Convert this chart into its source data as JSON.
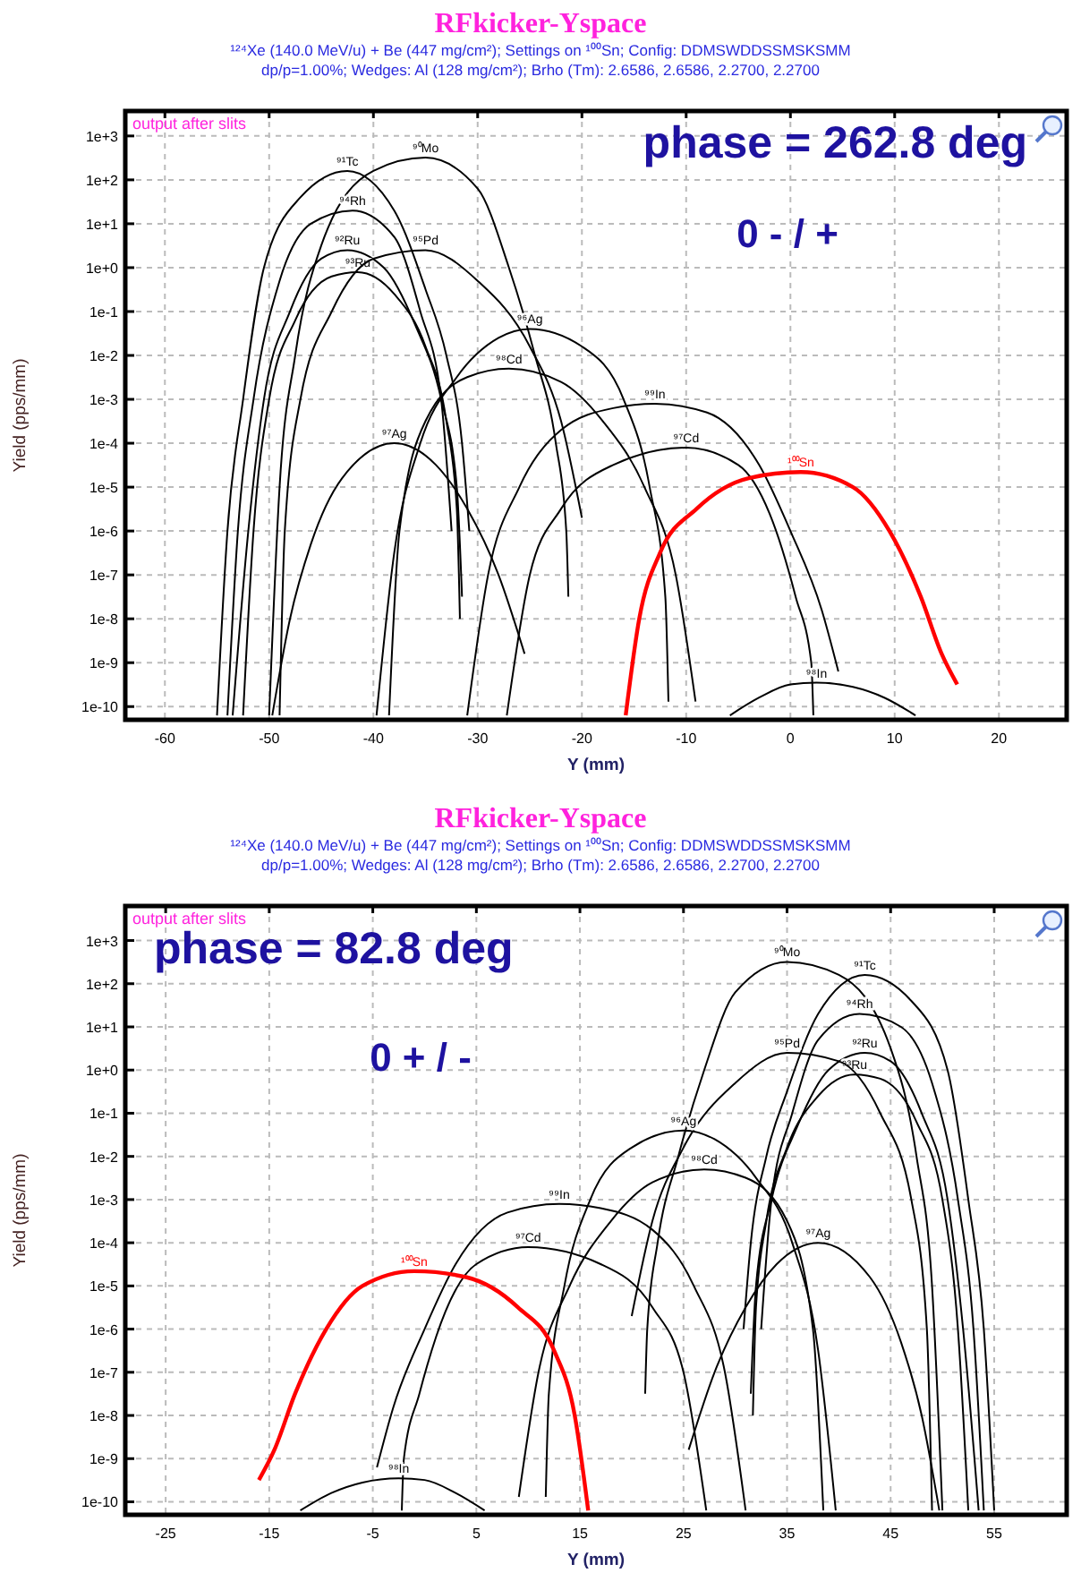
{
  "chart_data": [
    {
      "type": "line",
      "title": "RFkicker-Yspace",
      "subtitle": "¹²⁴Xe (140.0 MeV/u) + Be (447 mg/cm²); Settings on ¹⁰⁰Sn; Config: DDMSWDDSSMSKSMM\ndp/p=1.00%; Wedges: Al (128 mg/cm²); Brho (Tm): 2.6586, 2.6586, 2.2700, 2.2700",
      "xlabel": "Y (mm)",
      "ylabel": "Yield (pps/mm)",
      "annotations": [
        "output after slits",
        "phase = 262.8 deg",
        "0 - / +"
      ],
      "xlim": [
        -63.8,
        26.5
      ],
      "xticks": [
        -60,
        -50,
        -40,
        -30,
        -20,
        -10,
        0,
        10,
        20
      ],
      "ylim": [
        5e-11,
        3700
      ],
      "yticks": [
        {
          "value": 1e-10,
          "label": "1e-10"
        },
        {
          "value": 1e-09,
          "label": "1e-9"
        },
        {
          "value": 1e-08,
          "label": "1e-8"
        },
        {
          "value": 1e-07,
          "label": "1e-7"
        },
        {
          "value": 1e-06,
          "label": "1e-6"
        },
        {
          "value": 1e-05,
          "label": "1e-5"
        },
        {
          "value": 0.0001,
          "label": "1e-4"
        },
        {
          "value": 0.001,
          "label": "1e-3"
        },
        {
          "value": 0.01,
          "label": "1e-2"
        },
        {
          "value": 0.1,
          "label": "1e-1"
        },
        {
          "value": 1,
          "label": "1e+0"
        },
        {
          "value": 10,
          "label": "1e+1"
        },
        {
          "value": 100,
          "label": "1e+2"
        },
        {
          "value": 1000,
          "label": "1e+3"
        }
      ],
      "log": "y",
      "grid": true,
      "legend": false,
      "line_style": "solid",
      "marker": "none",
      "series": [
        {
          "name": "⁹¹Tc",
          "color": "#000000",
          "x": [
            -55,
            -54,
            -52.5,
            -50.5,
            -47,
            -42.5,
            -38,
            -35,
            -33,
            -31.5,
            -30.8
          ],
          "values": [
            6.3e-11,
            1e-06,
            0.001,
            1,
            40,
            160,
            20,
            0.32,
            0.01,
            0.0001,
            1e-06
          ]
        },
        {
          "name": "⁹⁰Mo",
          "color": "#000000",
          "x": [
            -50,
            -49,
            -47.5,
            -45,
            -40,
            -35,
            -30,
            -27,
            -24.5,
            -22.5,
            -21.5,
            -21.3
          ],
          "values": [
            6.3e-11,
            1e-05,
            0.01,
            3.2,
            160,
            320,
            63,
            1,
            0.01,
            0.0001,
            1e-06,
            3.2e-08
          ]
        },
        {
          "name": "⁹⁴Rh",
          "color": "#000000",
          "x": [
            -54,
            -53,
            -51.5,
            -49,
            -46,
            -42,
            -38,
            -35.5,
            -33.5,
            -32.5
          ],
          "values": [
            6.3e-11,
            1e-06,
            0.001,
            0.5,
            10,
            20,
            5,
            0.1,
            0.001,
            1e-06
          ]
        },
        {
          "name": "⁹²Ru",
          "color": "#000000",
          "x": [
            -53.5,
            -52,
            -50.5,
            -48,
            -45,
            -42.5,
            -39,
            -36,
            -33.5,
            -32,
            -31.5
          ],
          "values": [
            6.3e-11,
            1e-06,
            0.001,
            0.1,
            1.6,
            2.5,
            1,
            0.05,
            0.001,
            1e-05,
            3.2e-08
          ]
        },
        {
          "name": "⁹³Ru",
          "color": "#000000",
          "x": [
            -52.5,
            -51.5,
            -50,
            -47.5,
            -44,
            -41.5,
            -38,
            -35,
            -33,
            -32,
            -31.7
          ],
          "values": [
            6.3e-11,
            1e-06,
            0.001,
            0.063,
            0.63,
            0.79,
            0.25,
            0.016,
            0.00032,
            3.2e-06,
            1e-08
          ]
        },
        {
          "name": "⁹⁵Pd",
          "color": "#000000",
          "x": [
            -49,
            -48.5,
            -47,
            -44,
            -40,
            -35,
            -30,
            -25,
            -22,
            -20
          ],
          "values": [
            6.3e-11,
            1e-06,
            0.001,
            0.1,
            1.6,
            2.5,
            0.5,
            0.016,
            0.00032,
            2e-06
          ]
        },
        {
          "name": "⁹⁶Ag",
          "color": "#000000",
          "x": [
            -39.7,
            -38,
            -35.5,
            -32,
            -28,
            -25,
            -20,
            -16,
            -13.5,
            -12,
            -11.7
          ],
          "values": [
            6.3e-11,
            3.2e-07,
            0.0001,
            0.0032,
            0.025,
            0.04,
            0.016,
            0.001,
            1e-05,
            3.2e-08,
            1.3e-10
          ]
        },
        {
          "name": "⁹⁸Cd",
          "color": "#000000",
          "x": [
            -38.5,
            -37.5,
            -35,
            -31,
            -27,
            -22,
            -18,
            -14,
            -11,
            -9.1
          ],
          "values": [
            6.3e-11,
            1e-06,
            0.00032,
            0.0032,
            0.005,
            0.0025,
            0.00032,
            1e-05,
            1e-07,
            1.3e-10
          ]
        },
        {
          "name": "⁹⁹In",
          "color": "#000000",
          "x": [
            -31,
            -29,
            -26,
            -22,
            -17,
            -13,
            -8,
            -3,
            0,
            3,
            4.6
          ],
          "values": [
            6.3e-11,
            1e-07,
            1e-05,
            0.0002,
            0.00063,
            0.00079,
            0.0005,
            3.2e-05,
            1e-06,
            1.6e-08,
            6.3e-10
          ]
        },
        {
          "name": "⁹⁷Ag",
          "color": "#000000",
          "x": [
            -49.7,
            -48,
            -46,
            -43,
            -38,
            -34,
            -31,
            -28,
            -25.5
          ],
          "values": [
            6.3e-11,
            1e-08,
            5e-07,
            1.6e-05,
            0.0001,
            3.2e-05,
            3.2e-06,
            1e-07,
            1.6e-09
          ]
        },
        {
          "name": "⁹⁷Cd",
          "color": "#000000",
          "x": [
            -27.2,
            -25,
            -22,
            -17,
            -10,
            -5,
            -2,
            0.5,
            2,
            2.2
          ],
          "values": [
            6.3e-11,
            1e-07,
            3.2e-06,
            3.2e-05,
            7.9e-05,
            3.2e-05,
            2.5e-06,
            3.2e-08,
            1e-09,
            6.3e-11
          ]
        },
        {
          "name": "¹⁰⁰Sn",
          "color": "#ff0000",
          "x": [
            -15.8,
            -14.5,
            -12.5,
            -9,
            -4,
            1,
            6,
            9.5,
            12.5,
            14.5,
            16
          ],
          "values": [
            6.3e-11,
            1e-08,
            3.2e-07,
            3.2e-06,
            1.6e-05,
            2.2e-05,
            1e-05,
            1e-06,
            3.2e-08,
            1.6e-09,
            3.2e-10
          ]
        },
        {
          "name": "⁹⁸In",
          "color": "#000000",
          "x": [
            -5.8,
            -3,
            0,
            2.5,
            6,
            9,
            12
          ],
          "values": [
            6.3e-11,
            1.6e-10,
            3.2e-10,
            3.5e-10,
            2.8e-10,
            1.6e-10,
            6.3e-11
          ]
        }
      ]
    },
    {
      "type": "line",
      "title": "RFkicker-Yspace",
      "subtitle": "¹²⁴Xe (140.0 MeV/u) + Be (447 mg/cm²); Settings on ¹⁰⁰Sn; Config: DDMSWDDSSMSKSMM\ndp/p=1.00%; Wedges: Al (128 mg/cm²); Brho (Tm): 2.6586, 2.6586, 2.2700, 2.2700",
      "xlabel": "Y (mm)",
      "ylabel": "Yield (pps/mm)",
      "annotations": [
        "output after slits",
        "phase = 82.8 deg",
        "0 + / -"
      ],
      "xlim": [
        -28.9,
        62
      ],
      "xticks": [
        -25,
        -15,
        -5,
        5,
        15,
        25,
        35,
        45,
        55
      ],
      "ylim": [
        5e-11,
        6300
      ],
      "yticks": [
        {
          "value": 1e-10,
          "label": "1e-10"
        },
        {
          "value": 1e-09,
          "label": "1e-9"
        },
        {
          "value": 1e-08,
          "label": "1e-8"
        },
        {
          "value": 1e-07,
          "label": "1e-7"
        },
        {
          "value": 1e-06,
          "label": "1e-6"
        },
        {
          "value": 1e-05,
          "label": "1e-5"
        },
        {
          "value": 0.0001,
          "label": "1e-4"
        },
        {
          "value": 0.001,
          "label": "1e-3"
        },
        {
          "value": 0.01,
          "label": "1e-2"
        },
        {
          "value": 0.1,
          "label": "1e-1"
        },
        {
          "value": 1,
          "label": "1e+0"
        },
        {
          "value": 10,
          "label": "1e+1"
        },
        {
          "value": 100,
          "label": "1e+2"
        },
        {
          "value": 1000,
          "label": "1e+3"
        }
      ],
      "log": "y",
      "grid": true,
      "legend": false,
      "line_style": "solid",
      "marker": "none",
      "series": [
        {
          "name": "⁹¹Tc",
          "color": "#000000",
          "x": [
            30.8,
            31.5,
            33,
            35,
            38,
            42.5,
            47,
            50.5,
            52.5,
            54,
            55
          ],
          "values": [
            1e-06,
            0.0001,
            0.01,
            0.32,
            20,
            160,
            40,
            1,
            0.001,
            1e-06,
            6.3e-11
          ]
        },
        {
          "name": "⁹⁰Mo",
          "color": "#000000",
          "x": [
            21.3,
            21.5,
            22.5,
            24.5,
            27,
            30,
            35,
            40,
            45,
            47.5,
            49,
            50
          ],
          "values": [
            3.2e-08,
            1e-06,
            0.0001,
            0.01,
            1,
            63,
            320,
            160,
            3.2,
            0.01,
            1e-05,
            6.3e-11
          ]
        },
        {
          "name": "⁹⁴Rh",
          "color": "#000000",
          "x": [
            32.5,
            33.5,
            35.5,
            38,
            42,
            46,
            49,
            51.5,
            53,
            54
          ],
          "values": [
            1e-06,
            0.001,
            0.1,
            5,
            20,
            10,
            0.5,
            0.001,
            1e-06,
            6.3e-11
          ]
        },
        {
          "name": "⁹²Ru",
          "color": "#000000",
          "x": [
            31.5,
            32,
            33.5,
            36,
            39,
            42.5,
            45,
            48,
            50.5,
            52,
            53.5
          ],
          "values": [
            3.2e-08,
            1e-05,
            0.001,
            0.05,
            1,
            2.5,
            1.6,
            0.1,
            0.001,
            1e-06,
            6.3e-11
          ]
        },
        {
          "name": "⁹³Ru",
          "color": "#000000",
          "x": [
            31.7,
            32,
            33,
            35,
            38,
            41.5,
            44,
            47.5,
            50,
            51.5,
            52.5
          ],
          "values": [
            1e-08,
            3.2e-06,
            0.00032,
            0.016,
            0.25,
            0.79,
            0.63,
            0.063,
            0.001,
            1e-06,
            6.3e-11
          ]
        },
        {
          "name": "⁹⁵Pd",
          "color": "#000000",
          "x": [
            20,
            22,
            25,
            30,
            35,
            40,
            44,
            47,
            48.5,
            49
          ],
          "values": [
            2e-06,
            0.00032,
            0.016,
            0.5,
            2.5,
            1.6,
            0.1,
            0.001,
            1e-06,
            6.3e-11
          ]
        },
        {
          "name": "⁹⁶Ag",
          "color": "#000000",
          "x": [
            11.7,
            12,
            13.5,
            16,
            20,
            25,
            28,
            32,
            35.5,
            38,
            39.7
          ],
          "values": [
            1.3e-10,
            3.2e-08,
            1e-05,
            0.001,
            0.016,
            0.04,
            0.025,
            0.0032,
            0.0001,
            3.2e-07,
            6.3e-11
          ]
        },
        {
          "name": "⁹⁸Cd",
          "color": "#000000",
          "x": [
            9.1,
            11,
            14,
            18,
            22,
            27,
            31,
            35,
            37.5,
            38.5
          ],
          "values": [
            1.3e-10,
            1e-07,
            1e-05,
            0.00032,
            0.0025,
            0.005,
            0.0032,
            0.00032,
            1e-06,
            6.3e-11
          ]
        },
        {
          "name": "⁹⁹In",
          "color": "#000000",
          "x": [
            -4.6,
            -3,
            0,
            3,
            8,
            13,
            17,
            22,
            26,
            29,
            31
          ],
          "values": [
            6.3e-10,
            1.6e-08,
            1e-06,
            3.2e-05,
            0.0005,
            0.00079,
            0.00063,
            0.0002,
            1e-05,
            1e-07,
            6.3e-11
          ]
        },
        {
          "name": "⁹⁷Ag",
          "color": "#000000",
          "x": [
            25.5,
            28,
            31,
            34,
            38,
            43,
            46,
            48,
            49.7
          ],
          "values": [
            1.6e-09,
            1e-07,
            3.2e-06,
            3.2e-05,
            0.0001,
            1.6e-05,
            5e-07,
            1e-08,
            6.3e-11
          ]
        },
        {
          "name": "⁹⁷Cd",
          "color": "#000000",
          "x": [
            -2.2,
            -2,
            -0.5,
            2,
            5,
            10,
            17,
            22,
            25,
            27.2
          ],
          "values": [
            6.3e-11,
            1e-09,
            3.2e-08,
            2.5e-06,
            3.2e-05,
            7.9e-05,
            3.2e-05,
            3.2e-06,
            1e-07,
            6.3e-11
          ]
        },
        {
          "name": "¹⁰⁰Sn",
          "color": "#ff0000",
          "x": [
            -16,
            -14.5,
            -12.5,
            -9.5,
            -6,
            -1,
            4,
            9,
            12.5,
            14.5,
            15.8
          ],
          "values": [
            3.2e-10,
            1.6e-09,
            3.2e-08,
            1e-06,
            1e-05,
            2.2e-05,
            1.6e-05,
            3.2e-06,
            3.2e-07,
            1e-08,
            6.3e-11
          ]
        },
        {
          "name": "⁹⁸In",
          "color": "#000000",
          "x": [
            -12,
            -9,
            -6,
            -2.5,
            0,
            3,
            5.8
          ],
          "values": [
            6.3e-11,
            1.6e-10,
            2.8e-10,
            3.5e-10,
            3.2e-10,
            1.6e-10,
            6.3e-11
          ]
        }
      ]
    }
  ]
}
